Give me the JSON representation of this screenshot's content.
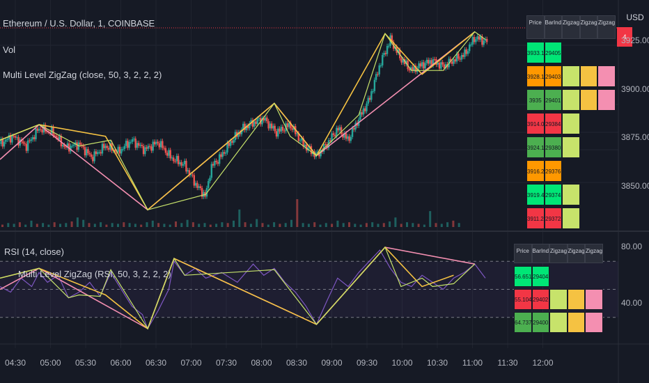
{
  "header": {
    "symbol_title": "Ethereum / U.S. Dollar, 1, COINBASE",
    "vol_label": "Vol",
    "zigzag_label": "Multi Level ZigZag (close, 50, 3, 2, 2, 2)",
    "rsi_label": "RSI (14, close)",
    "rsi_zigzag_label": "Multi Level ZigZag (RSI, 50, 3, 2, 2, 2)",
    "currency": "USD",
    "price_tag": "4"
  },
  "colors": {
    "background": "#161a25",
    "green": "#26a69a",
    "red": "#ef5350",
    "zigzag1": "#c7e36b",
    "zigzag2": "#f5c242",
    "zigzag3": "#e6a06e",
    "zigzag4": "#f48fb1",
    "rsi_line": "#7e57c2"
  },
  "table_top": {
    "headers": [
      "Price",
      "BarIndex",
      "Zigzag2",
      "Zigzag3",
      "Zigzag4"
    ],
    "rows": [
      {
        "price": "3933.16",
        "bar": "29405",
        "levels": 0,
        "color": "#00e676"
      },
      {
        "price": "3928.19",
        "bar": "29403",
        "levels": 3,
        "color": "#ff9800"
      },
      {
        "price": "3935",
        "bar": "29401",
        "levels": 3,
        "color": "#4caf50"
      },
      {
        "price": "3914.01",
        "bar": "29384",
        "levels": 1,
        "color": "#f23645"
      },
      {
        "price": "3924.15",
        "bar": "29380",
        "levels": 1,
        "color": "#4caf50"
      },
      {
        "price": "3916.27",
        "bar": "29376",
        "levels": 0,
        "color": "#ff9800"
      },
      {
        "price": "3919.41",
        "bar": "29374",
        "levels": 1,
        "color": "#00e676"
      },
      {
        "price": "3911.24",
        "bar": "29372",
        "levels": 1,
        "color": "#f23645"
      }
    ]
  },
  "table_rsi": {
    "headers": [
      "Price",
      "BarIndex",
      "Zigzag2",
      "Zigzag3",
      "Zigzag4"
    ],
    "rows": [
      {
        "price": "56.6512799497",
        "bar": "29404",
        "levels": 0,
        "color": "#00e676"
      },
      {
        "price": "55.1042585155",
        "bar": "29402",
        "levels": 3,
        "color": "#f23645"
      },
      {
        "price": "64.7376406376",
        "bar": "29400",
        "levels": 3,
        "color": "#4caf50"
      }
    ]
  },
  "chart_data": [
    {
      "type": "candlestick",
      "title": "Ethereum / U.S. Dollar, 1, COINBASE",
      "ylim": [
        3832,
        3932
      ],
      "y_ticks": [
        "3925.00",
        "3900.00",
        "3875.00",
        "3850.00"
      ],
      "x_ticks": [
        "04:30",
        "05:00",
        "05:30",
        "06:00",
        "06:30",
        "07:00",
        "07:30",
        "08:00",
        "08:30",
        "09:00",
        "09:30",
        "10:00",
        "10:30",
        "11:00",
        "11:30",
        "12:00"
      ],
      "x_range_minutes": [
        0,
        462
      ],
      "close_path": [
        [
          0,
          3872
        ],
        [
          12,
          3876
        ],
        [
          25,
          3871
        ],
        [
          37,
          3880
        ],
        [
          50,
          3878
        ],
        [
          62,
          3870
        ],
        [
          75,
          3872
        ],
        [
          87,
          3865
        ],
        [
          100,
          3871
        ],
        [
          112,
          3868
        ],
        [
          125,
          3874
        ],
        [
          137,
          3869
        ],
        [
          150,
          3873
        ],
        [
          162,
          3865
        ],
        [
          175,
          3861
        ],
        [
          187,
          3850
        ],
        [
          195,
          3845
        ],
        [
          200,
          3860
        ],
        [
          210,
          3866
        ],
        [
          220,
          3874
        ],
        [
          230,
          3880
        ],
        [
          240,
          3883
        ],
        [
          250,
          3885
        ],
        [
          262,
          3878
        ],
        [
          275,
          3882
        ],
        [
          287,
          3872
        ],
        [
          300,
          3866
        ],
        [
          310,
          3872
        ],
        [
          320,
          3880
        ],
        [
          330,
          3874
        ],
        [
          340,
          3885
        ],
        [
          350,
          3895
        ],
        [
          360,
          3913
        ],
        [
          370,
          3926
        ],
        [
          380,
          3916
        ],
        [
          390,
          3910
        ],
        [
          400,
          3913
        ],
        [
          410,
          3915
        ],
        [
          420,
          3912
        ],
        [
          432,
          3916
        ],
        [
          440,
          3918
        ],
        [
          450,
          3927
        ],
        [
          460,
          3925
        ]
      ],
      "zigzag1": [
        [
          0,
          3874
        ],
        [
          37,
          3882
        ],
        [
          75,
          3871
        ],
        [
          105,
          3874
        ],
        [
          140,
          3838
        ],
        [
          195,
          3846
        ],
        [
          260,
          3893
        ],
        [
          275,
          3876
        ],
        [
          300,
          3866
        ],
        [
          340,
          3887
        ],
        [
          365,
          3929
        ],
        [
          390,
          3910
        ],
        [
          420,
          3910
        ],
        [
          450,
          3930
        ],
        [
          460,
          3926
        ]
      ],
      "zigzag2": [
        [
          0,
          3874
        ],
        [
          37,
          3882
        ],
        [
          100,
          3876
        ],
        [
          140,
          3838
        ],
        [
          260,
          3893
        ],
        [
          300,
          3866
        ],
        [
          365,
          3929
        ],
        [
          400,
          3908
        ],
        [
          450,
          3930
        ]
      ],
      "zigzag3": [
        [
          0,
          3864
        ],
        [
          37,
          3882
        ],
        [
          140,
          3838
        ],
        [
          260,
          3893
        ],
        [
          300,
          3866
        ],
        [
          450,
          3930
        ]
      ],
      "volume": [
        3,
        5,
        4,
        6,
        3,
        8,
        4,
        5,
        3,
        6,
        4,
        5,
        7,
        12,
        9,
        5,
        4,
        6,
        3,
        5,
        4,
        6,
        5,
        4,
        3,
        6,
        8,
        5,
        4,
        3,
        7,
        5,
        9,
        6,
        4,
        5,
        3,
        4,
        6,
        5,
        8,
        22,
        6,
        4,
        10,
        5,
        3,
        6,
        4,
        5,
        9,
        35,
        5,
        4,
        6,
        3,
        5,
        4,
        8,
        5,
        6,
        4,
        3,
        5,
        6,
        4,
        5,
        7,
        12,
        4,
        6,
        5,
        4,
        3,
        20,
        5,
        4,
        6,
        8,
        5
      ]
    },
    {
      "type": "line",
      "title": "RSI (14, close)",
      "ylim": [
        13,
        85
      ],
      "y_ticks": [
        "80.00",
        "40.00"
      ],
      "bands": [
        30,
        50,
        70
      ],
      "rsi": [
        [
          0,
          52
        ],
        [
          10,
          48
        ],
        [
          20,
          58
        ],
        [
          30,
          52
        ],
        [
          37,
          62
        ],
        [
          45,
          55
        ],
        [
          55,
          60
        ],
        [
          65,
          44
        ],
        [
          75,
          48
        ],
        [
          85,
          55
        ],
        [
          95,
          45
        ],
        [
          105,
          62
        ],
        [
          115,
          50
        ],
        [
          125,
          38
        ],
        [
          135,
          32
        ],
        [
          140,
          22
        ],
        [
          150,
          35
        ],
        [
          160,
          50
        ],
        [
          165,
          70
        ],
        [
          175,
          60
        ],
        [
          185,
          65
        ],
        [
          195,
          58
        ],
        [
          210,
          62
        ],
        [
          225,
          55
        ],
        [
          240,
          68
        ],
        [
          250,
          60
        ],
        [
          260,
          65
        ],
        [
          270,
          55
        ],
        [
          280,
          48
        ],
        [
          290,
          38
        ],
        [
          300,
          25
        ],
        [
          310,
          42
        ],
        [
          320,
          58
        ],
        [
          330,
          52
        ],
        [
          340,
          62
        ],
        [
          350,
          70
        ],
        [
          360,
          78
        ],
        [
          370,
          65
        ],
        [
          380,
          55
        ],
        [
          390,
          52
        ],
        [
          400,
          60
        ],
        [
          410,
          55
        ],
        [
          420,
          50
        ],
        [
          430,
          58
        ],
        [
          440,
          62
        ],
        [
          450,
          68
        ],
        [
          460,
          58
        ]
      ],
      "zigzag1": [
        [
          0,
          58
        ],
        [
          37,
          65
        ],
        [
          65,
          44
        ],
        [
          75,
          46
        ],
        [
          95,
          45
        ],
        [
          105,
          64
        ],
        [
          140,
          22
        ],
        [
          165,
          72
        ],
        [
          175,
          60
        ],
        [
          260,
          64
        ],
        [
          300,
          25
        ],
        [
          365,
          80
        ],
        [
          380,
          52
        ],
        [
          400,
          58
        ],
        [
          410,
          52
        ],
        [
          430,
          54
        ],
        [
          450,
          68
        ]
      ],
      "zigzag2": [
        [
          0,
          58
        ],
        [
          37,
          65
        ],
        [
          100,
          46
        ],
        [
          140,
          22
        ],
        [
          165,
          72
        ],
        [
          300,
          25
        ],
        [
          365,
          80
        ],
        [
          400,
          52
        ],
        [
          430,
          60
        ]
      ],
      "zigzag3": [
        [
          0,
          50
        ],
        [
          37,
          65
        ],
        [
          140,
          22
        ],
        [
          165,
          72
        ],
        [
          300,
          25
        ],
        [
          365,
          80
        ],
        [
          450,
          68
        ]
      ]
    }
  ]
}
